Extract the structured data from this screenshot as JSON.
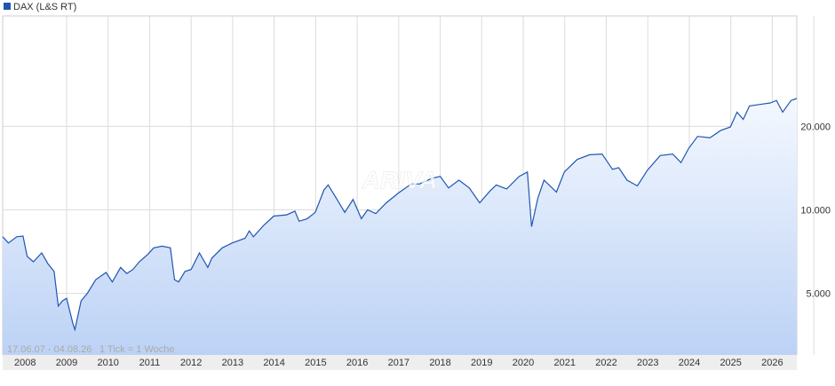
{
  "chart_data": {
    "type": "area",
    "log_y": true,
    "grid": true,
    "legend": "top-left",
    "watermark": "ARIVA",
    "annotations": [
      "17.06.07 - 04.08.26",
      "1 Tick = 1 Woche"
    ],
    "xlim": [
      2007.46,
      2026.59
    ],
    "xticks": [
      2008,
      2009,
      2010,
      2011,
      2012,
      2013,
      2014,
      2015,
      2016,
      2017,
      2018,
      2019,
      2020,
      2021,
      2022,
      2023,
      2024,
      2025,
      2026
    ],
    "ylim": [
      3000,
      50000
    ],
    "yticks": [
      {
        "value": 5000,
        "label": "5.000"
      },
      {
        "value": 10000,
        "label": "10.000"
      },
      {
        "value": 20000,
        "label": "20.000"
      }
    ],
    "x": [
      2007.46,
      2007.6,
      2007.8,
      2007.95,
      2008.05,
      2008.2,
      2008.4,
      2008.55,
      2008.7,
      2008.8,
      2008.9,
      2009.0,
      2009.15,
      2009.2,
      2009.35,
      2009.5,
      2009.7,
      2009.95,
      2010.1,
      2010.3,
      2010.45,
      2010.6,
      2010.75,
      2010.95,
      2011.1,
      2011.3,
      2011.5,
      2011.6,
      2011.7,
      2011.85,
      2012.0,
      2012.2,
      2012.4,
      2012.5,
      2012.75,
      2012.99,
      2013.3,
      2013.4,
      2013.5,
      2013.75,
      2013.99,
      2014.3,
      2014.5,
      2014.6,
      2014.8,
      2014.99,
      2015.2,
      2015.3,
      2015.5,
      2015.7,
      2015.9,
      2016.1,
      2016.25,
      2016.45,
      2016.7,
      2016.99,
      2017.3,
      2017.5,
      2017.8,
      2018.0,
      2018.2,
      2018.45,
      2018.7,
      2018.95,
      2019.2,
      2019.35,
      2019.6,
      2019.9,
      2020.1,
      2020.2,
      2020.35,
      2020.5,
      2020.8,
      2020.99,
      2021.3,
      2021.6,
      2021.9,
      2022.15,
      2022.3,
      2022.5,
      2022.75,
      2022.99,
      2023.3,
      2023.6,
      2023.8,
      2023.99,
      2024.2,
      2024.5,
      2024.75,
      2024.99,
      2025.15,
      2025.3,
      2025.45,
      2025.7,
      2025.95,
      2026.1,
      2026.25,
      2026.45,
      2026.59
    ],
    "series": [
      {
        "name": "DAX (L&S RT)",
        "color": "#1f56b0",
        "values": [
          8000,
          7600,
          8000,
          8050,
          6800,
          6500,
          7000,
          6400,
          6000,
          4500,
          4700,
          4800,
          3900,
          3700,
          4700,
          5000,
          5600,
          5950,
          5500,
          6200,
          5900,
          6100,
          6500,
          6900,
          7300,
          7400,
          7300,
          5600,
          5500,
          6000,
          6100,
          7000,
          6200,
          6700,
          7300,
          7600,
          7900,
          8400,
          8000,
          8800,
          9500,
          9600,
          9900,
          9100,
          9300,
          9800,
          11800,
          12300,
          11000,
          9800,
          10900,
          9300,
          10000,
          9700,
          10600,
          11500,
          12400,
          12400,
          13000,
          13200,
          12000,
          12800,
          12000,
          10600,
          11700,
          12300,
          11900,
          13200,
          13700,
          8700,
          11000,
          12800,
          11600,
          13700,
          15200,
          15800,
          15900,
          14000,
          14200,
          12800,
          12200,
          13900,
          15700,
          15900,
          14800,
          16700,
          18400,
          18200,
          19300,
          19900,
          22500,
          21200,
          23700,
          24000,
          24300,
          24800,
          22500,
          24800,
          25200
        ]
      }
    ]
  }
}
